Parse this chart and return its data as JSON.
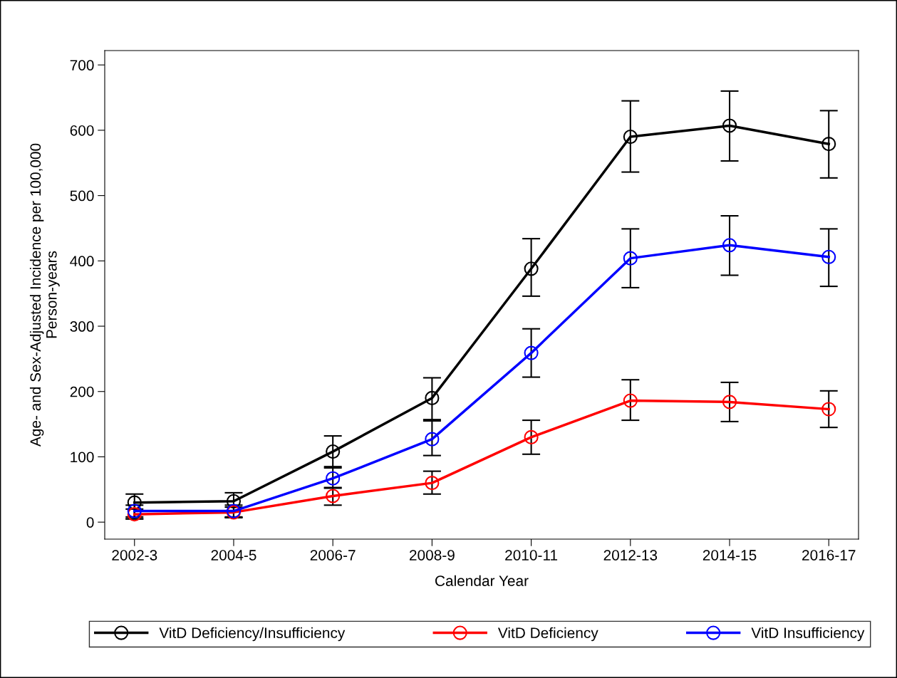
{
  "chart_data": {
    "type": "line",
    "xlabel": "Calendar Year",
    "ylabel": "Age- and Sex-Adjusted Incidence per 100,000\nPerson-years",
    "categories": [
      "2002-3",
      "2004-5",
      "2006-7",
      "2008-9",
      "2010-11",
      "2012-13",
      "2014-15",
      "2016-17"
    ],
    "ylim": [
      -26,
      722
    ],
    "yticks": [
      0,
      100,
      200,
      300,
      400,
      500,
      600,
      700
    ],
    "marker": "circle",
    "line_style": "solid",
    "grid": false,
    "legend": "bottom",
    "series": [
      {
        "name": "VitD Deficiency/Insufficiency",
        "color": "#000000",
        "values": [
          30,
          32,
          108,
          190,
          388,
          590,
          607,
          579
        ],
        "errors": [
          [
            5,
            43
          ],
          [
            7,
            45
          ],
          [
            83,
            132
          ],
          [
            157,
            221
          ],
          [
            346,
            434
          ],
          [
            536,
            645
          ],
          [
            553,
            660
          ],
          [
            527,
            630
          ]
        ]
      },
      {
        "name": "VitD Deficiency",
        "color": "#ff0000",
        "values": [
          12,
          15,
          40,
          60,
          130,
          186,
          184,
          173
        ],
        "errors": [
          [
            5,
            20
          ],
          [
            7,
            23
          ],
          [
            26,
            53
          ],
          [
            43,
            78
          ],
          [
            104,
            156
          ],
          [
            156,
            218
          ],
          [
            154,
            214
          ],
          [
            145,
            201
          ]
        ]
      },
      {
        "name": "VitD Insufficiency",
        "color": "#0000ff",
        "values": [
          17,
          17,
          67,
          127,
          259,
          404,
          424,
          406
        ],
        "errors": [
          [
            8,
            26
          ],
          [
            8,
            26
          ],
          [
            52,
            85
          ],
          [
            102,
            155
          ],
          [
            222,
            296
          ],
          [
            359,
            449
          ],
          [
            378,
            469
          ],
          [
            361,
            449
          ]
        ]
      }
    ]
  }
}
